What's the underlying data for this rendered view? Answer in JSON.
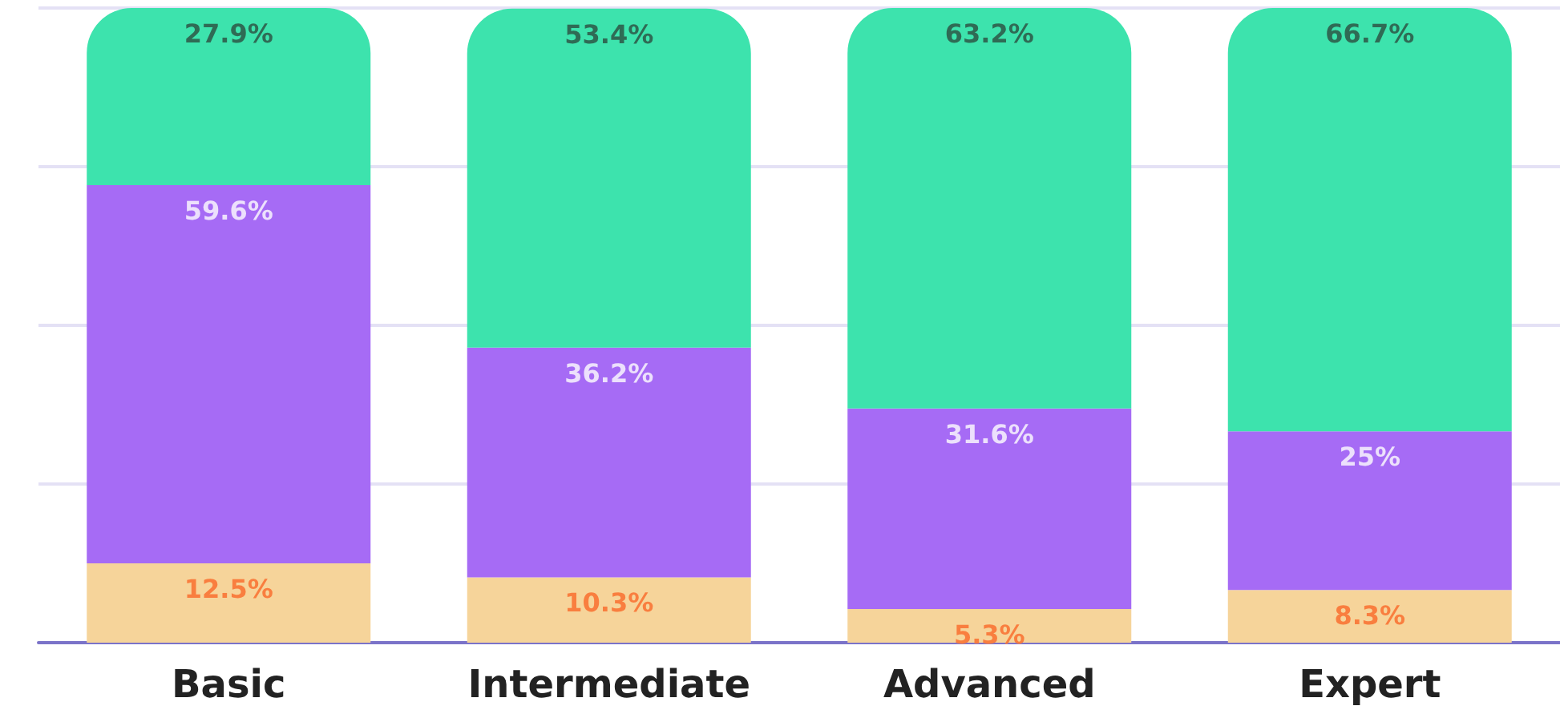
{
  "chart_data": {
    "type": "bar",
    "stacked": true,
    "categories": [
      "Basic",
      "Intermediate",
      "Advanced",
      "Expert"
    ],
    "series": [
      {
        "color": "#f6d49a",
        "values": [
          12.5,
          10.3,
          5.3,
          8.3
        ],
        "value_labels": [
          "12.5%",
          "10.3%",
          "5.3%",
          "8.3%"
        ]
      },
      {
        "color": "#a66bf5",
        "values": [
          59.6,
          36.2,
          31.6,
          25
        ],
        "value_labels": [
          "59.6%",
          "36.2%",
          "31.6%",
          "25%"
        ]
      },
      {
        "color": "#3de3ad",
        "values": [
          27.9,
          53.4,
          63.2,
          66.7
        ],
        "value_labels": [
          "27.9%",
          "53.4%",
          "63.2%",
          "66.7%"
        ]
      }
    ],
    "ylim": [
      0,
      100
    ],
    "yticks": [
      {
        "value": 0,
        "label": null
      },
      {
        "value": 25,
        "label": null
      },
      {
        "value": 50,
        "label": null
      },
      {
        "value": 75,
        "label": null
      },
      {
        "value": 100,
        "label": null
      }
    ],
    "grid": "y",
    "tick_labels": "x"
  }
}
